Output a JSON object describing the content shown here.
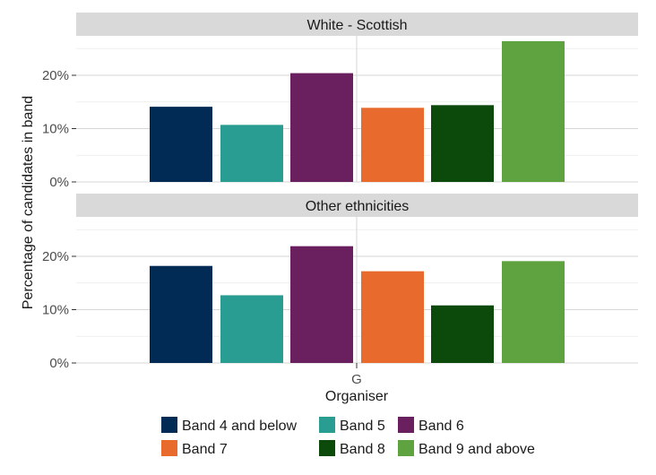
{
  "chart_data": {
    "type": "bar",
    "xlabel": "Organiser",
    "ylabel": "Percentage of candidates in band",
    "x_category": "G",
    "ylim": [
      0,
      28
    ],
    "yticks": [
      0,
      10,
      20
    ],
    "ytick_labels": [
      "0%",
      "10%",
      "20%"
    ],
    "grid": true,
    "legend_position": "bottom",
    "series": [
      {
        "name": "Band 4 and below",
        "color": "#012a55"
      },
      {
        "name": "Band 5",
        "color": "#2a9d93"
      },
      {
        "name": "Band 6",
        "color": "#6a1f5f"
      },
      {
        "name": "Band 7",
        "color": "#e86a2c"
      },
      {
        "name": "Band 8",
        "color": "#0c4a0c"
      },
      {
        "name": "Band 9 and above",
        "color": "#5fa340"
      }
    ],
    "facets": [
      {
        "label": "White - Scottish",
        "values": [
          14.1,
          10.7,
          20.4,
          13.9,
          14.4,
          26.4
        ]
      },
      {
        "label": "Other ethnicities",
        "values": [
          18.2,
          12.7,
          21.9,
          17.2,
          10.8,
          19.1
        ]
      }
    ]
  }
}
